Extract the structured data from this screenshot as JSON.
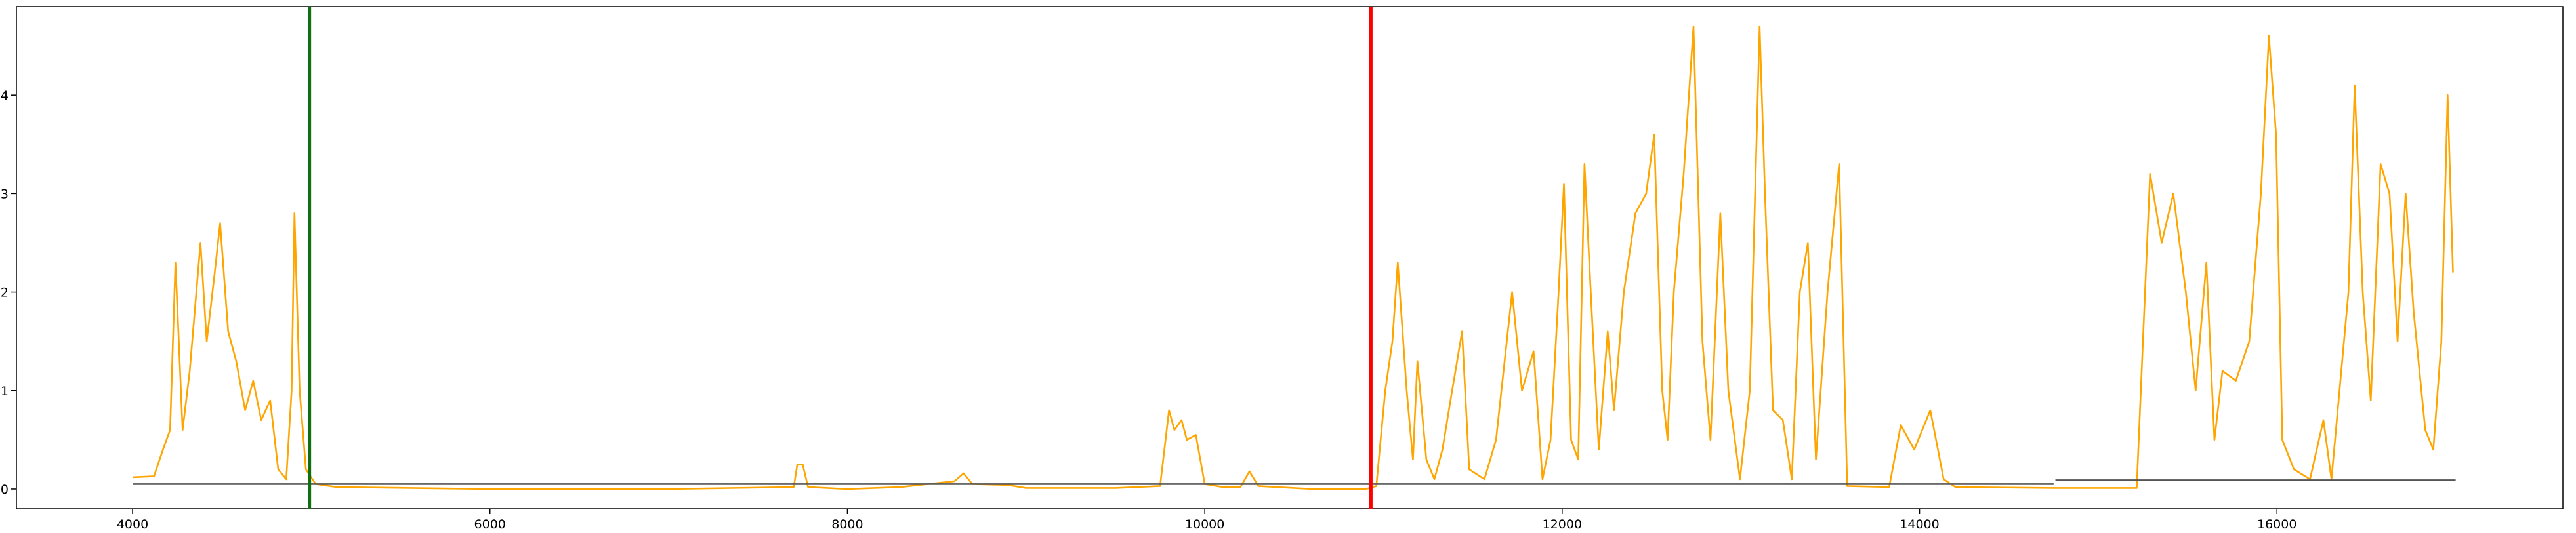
{
  "chart_data": {
    "type": "line",
    "xlim": [
      3350,
      17600
    ],
    "ylim": [
      -0.02,
      0.49
    ],
    "xticks": [
      4000,
      6000,
      8000,
      10000,
      12000,
      14000,
      16000
    ],
    "yticks": [
      {
        "value": 0,
        "label": "0.0"
      },
      0.1,
      0.2,
      0.3,
      0.4
    ],
    "grid": false,
    "series": [
      {
        "color": "#ffa500",
        "x": [
          4000,
          4120,
          4170,
          4210,
          4240,
          4280,
          4320,
          4380,
          4415,
          4460,
          4490,
          4535,
          4580,
          4630,
          4675,
          4720,
          4770,
          4815,
          4860,
          4890,
          4906,
          4935,
          4970,
          5025,
          5140,
          6000,
          7000,
          7700,
          7720,
          7750,
          7780,
          8000,
          8300,
          8600,
          8650,
          8700,
          8900,
          9000,
          9500,
          9750,
          9800,
          9830,
          9870,
          9900,
          9950,
          10000,
          10100,
          10200,
          10250,
          10300,
          10600,
          10900,
          10960,
          11010,
          11050,
          11080,
          11130,
          11165,
          11190,
          11240,
          11285,
          11330,
          11375,
          11440,
          11480,
          11565,
          11630,
          11720,
          11775,
          11840,
          11890,
          11935,
          11980,
          12010,
          12050,
          12090,
          12125,
          12160,
          12205,
          12255,
          12290,
          12345,
          12410,
          12470,
          12515,
          12560,
          12590,
          12625,
          12680,
          12735,
          12785,
          12830,
          12885,
          12930,
          12995,
          13050,
          13105,
          13135,
          13180,
          13235,
          13285,
          13330,
          13375,
          13420,
          13485,
          13550,
          13595,
          13830,
          13895,
          13970,
          14060,
          14135,
          14200,
          14755,
          15215,
          15290,
          15355,
          15420,
          15490,
          15545,
          15605,
          15650,
          15695,
          15770,
          15845,
          15910,
          15955,
          15995,
          16030,
          16095,
          16185,
          16260,
          16305,
          16400,
          16435,
          16480,
          16525,
          16580,
          16630,
          16675,
          16720,
          16765,
          16830,
          16875,
          16920,
          16955,
          16985
        ],
        "values": [
          0.012,
          0.013,
          0.04,
          0.06,
          0.23,
          0.06,
          0.12,
          0.25,
          0.15,
          0.22,
          0.27,
          0.16,
          0.13,
          0.08,
          0.11,
          0.07,
          0.09,
          0.02,
          0.01,
          0.1,
          0.28,
          0.1,
          0.02,
          0.005,
          0.002,
          0,
          0,
          0.002,
          0.025,
          0.025,
          0.002,
          0,
          0.002,
          0.008,
          0.016,
          0.005,
          0.004,
          0.001,
          0.001,
          0.003,
          0.08,
          0.06,
          0.07,
          0.05,
          0.055,
          0.005,
          0.002,
          0.002,
          0.018,
          0.003,
          0,
          0,
          0.003,
          0.1,
          0.15,
          0.23,
          0.1,
          0.03,
          0.13,
          0.03,
          0.01,
          0.04,
          0.09,
          0.16,
          0.02,
          0.01,
          0.05,
          0.2,
          0.1,
          0.14,
          0.01,
          0.05,
          0.2,
          0.31,
          0.05,
          0.03,
          0.33,
          0.2,
          0.04,
          0.16,
          0.08,
          0.2,
          0.28,
          0.3,
          0.36,
          0.1,
          0.05,
          0.2,
          0.32,
          0.47,
          0.15,
          0.05,
          0.28,
          0.1,
          0.01,
          0.1,
          0.47,
          0.3,
          0.08,
          0.07,
          0.01,
          0.2,
          0.25,
          0.03,
          0.2,
          0.33,
          0.003,
          0.002,
          0.065,
          0.04,
          0.08,
          0.01,
          0.002,
          0.001,
          0.001,
          0.32,
          0.25,
          0.3,
          0.2,
          0.1,
          0.23,
          0.05,
          0.12,
          0.11,
          0.15,
          0.3,
          0.46,
          0.36,
          0.05,
          0.02,
          0.01,
          0.07,
          0.01,
          0.2,
          0.41,
          0.2,
          0.09,
          0.33,
          0.3,
          0.15,
          0.3,
          0.18,
          0.06,
          0.04,
          0.15,
          0.4,
          0.22
        ]
      },
      {
        "color": "#555555",
        "x": [
          4000,
          14750,
          14750,
          14760,
          17000
        ],
        "values": [
          0.005,
          0.005,
          null,
          0.009,
          0.009
        ]
      }
    ],
    "vlines": [
      {
        "x": 4990,
        "color": "#107010"
      },
      {
        "x": 10930,
        "color": "#ff0000"
      }
    ]
  }
}
